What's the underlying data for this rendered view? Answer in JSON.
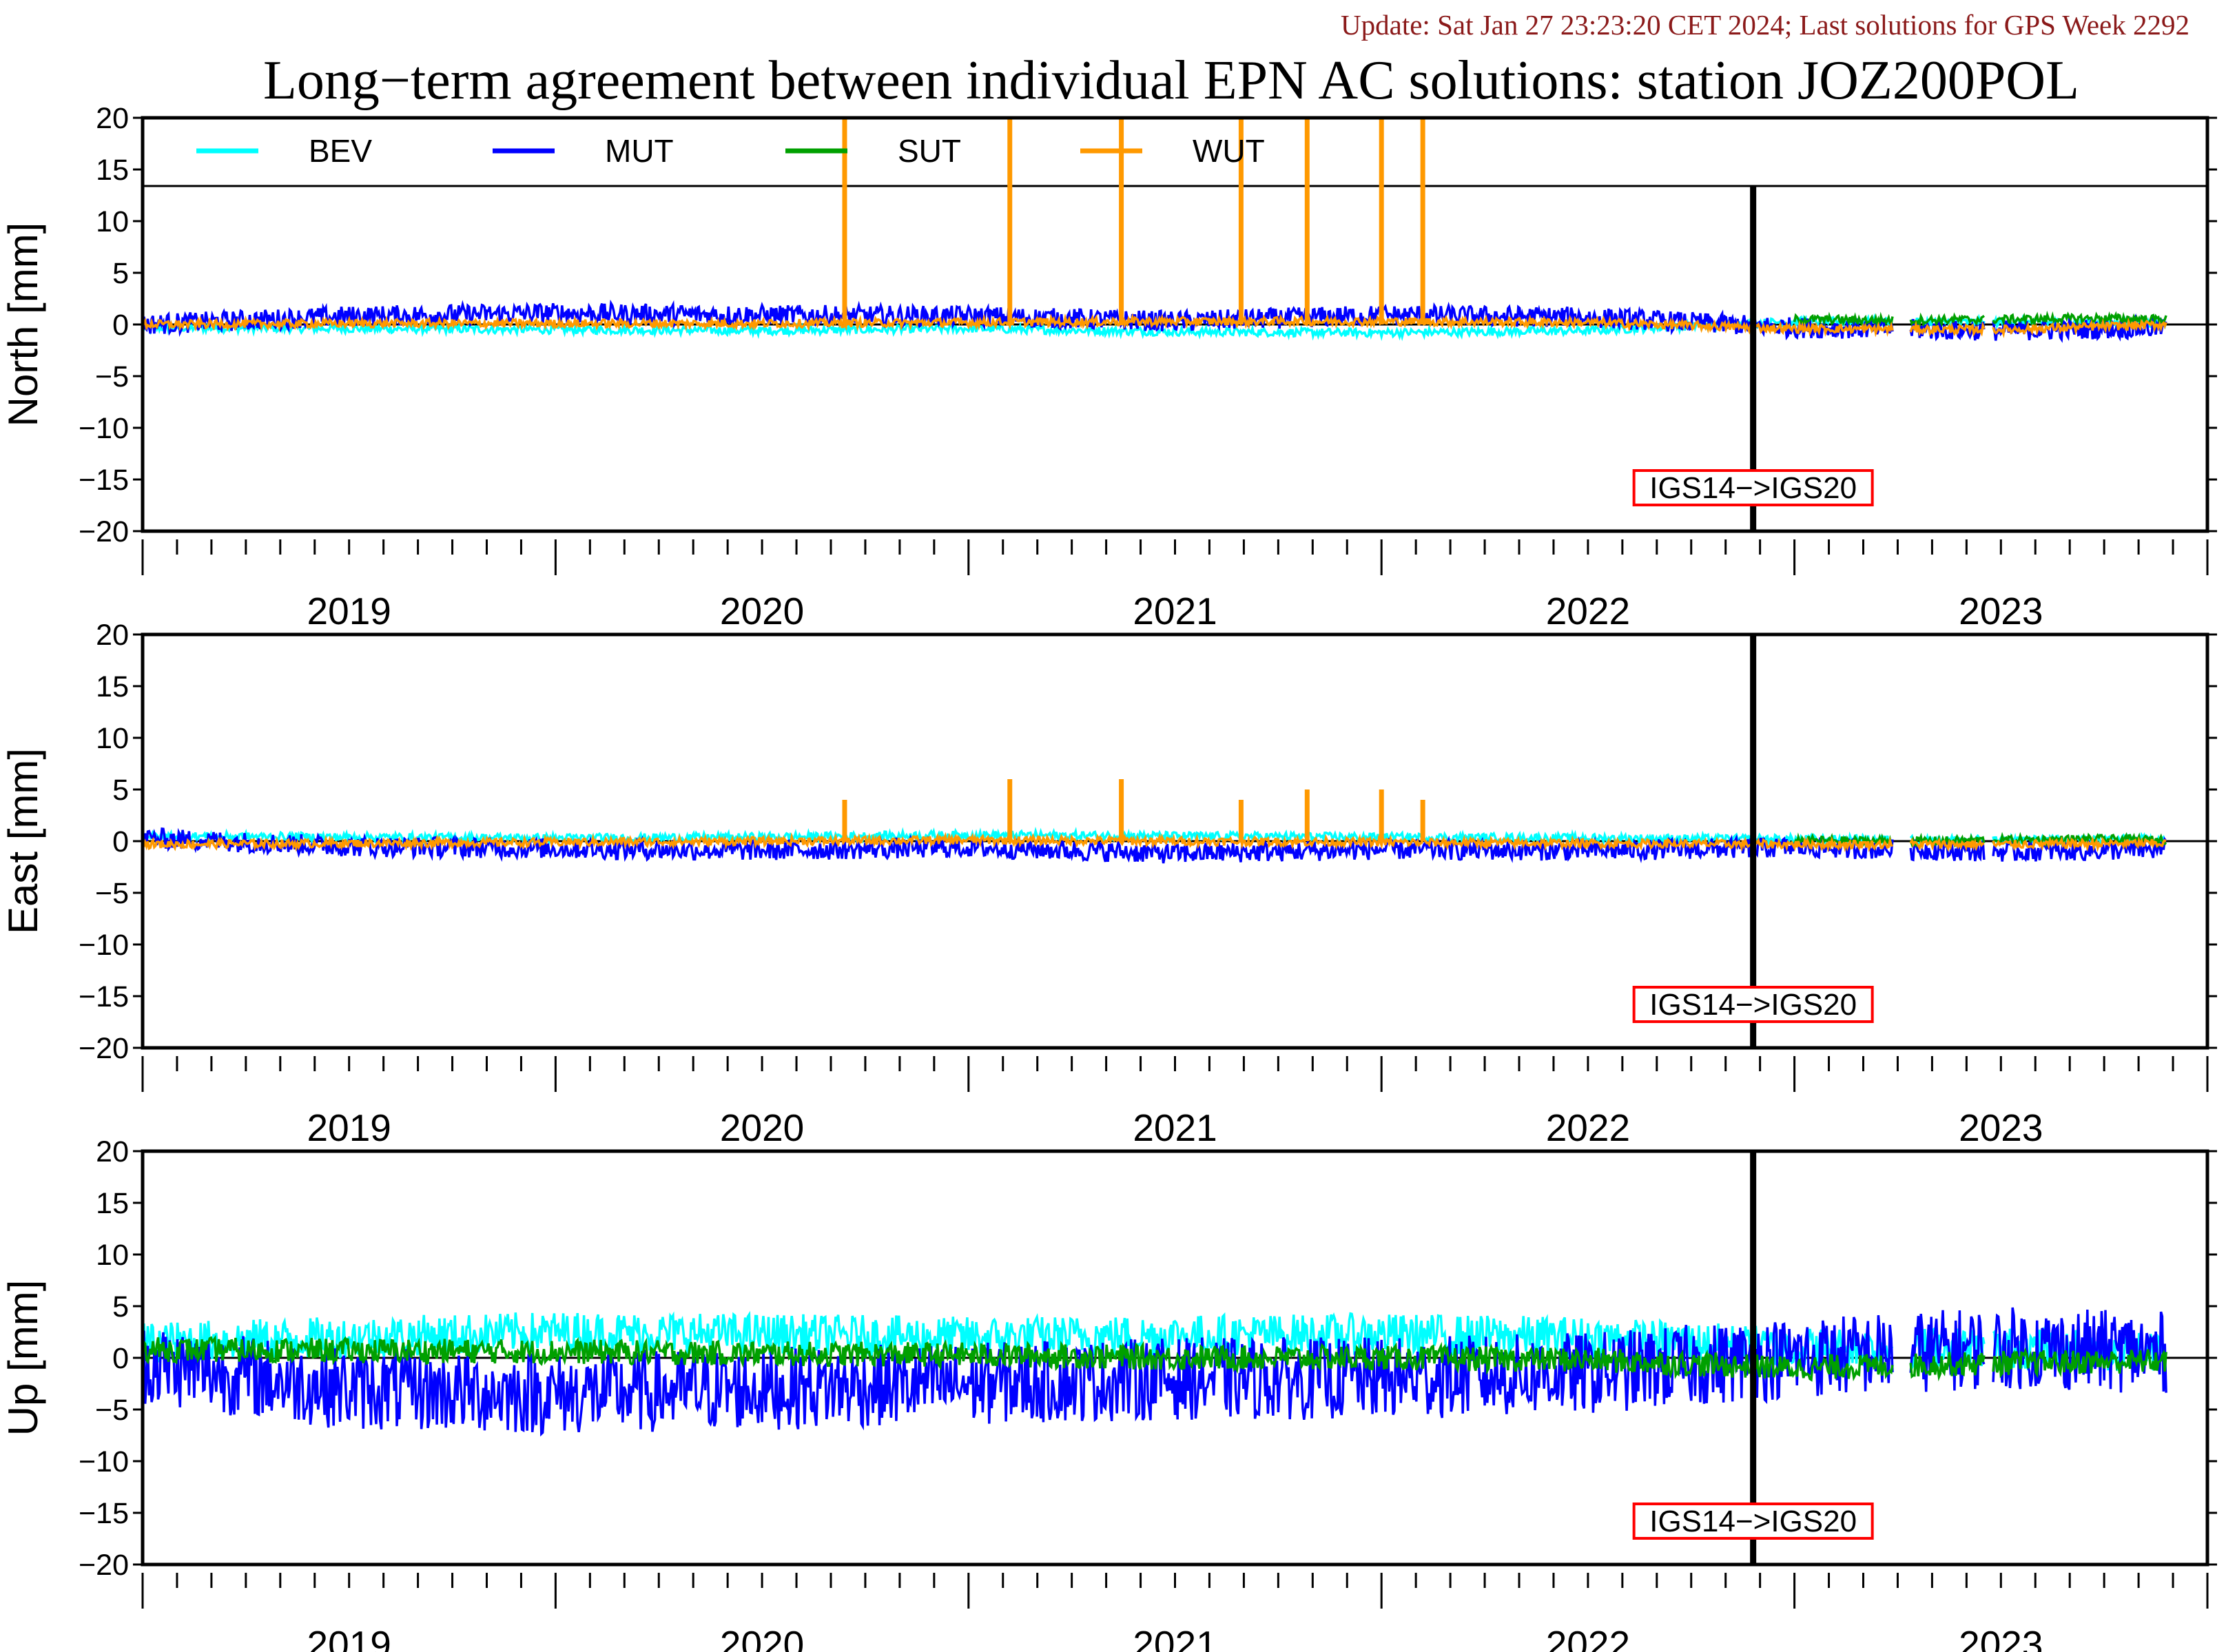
{
  "header": {
    "update_text": "Update: Sat Jan 27 23:23:20 CET 2024; Last solutions for GPS Week 2292",
    "title": "Long−term agreement between individual EPN AC solutions: station JOZ200POL"
  },
  "chart_data": [
    {
      "type": "line",
      "panel": "North",
      "ylabel": "North [mm]",
      "ylim": [
        -20,
        20
      ],
      "yticks": [
        "20",
        "15",
        "10",
        "5",
        "0",
        "−5",
        "−10",
        "−15",
        "−20"
      ],
      "xlim": [
        2018.5,
        2023.5
      ],
      "xticklabels": [
        "2019",
        "2020",
        "2021",
        "2022",
        "2023"
      ],
      "annotation": "IGS14−>IGS20",
      "annotation_x": 2022.4,
      "legend": true,
      "series": [
        {
          "name": "BEV",
          "color": "#00ffff",
          "x": [
            2018.5,
            2019.0,
            2019.5,
            2020.0,
            2020.5,
            2021.0,
            2021.5,
            2022.0,
            2022.5,
            2023.0,
            2023.4
          ],
          "y": [
            -0.3,
            -0.4,
            -0.5,
            -0.6,
            -0.4,
            -0.7,
            -0.8,
            -0.6,
            0.3,
            0.2,
            0.1
          ]
        },
        {
          "name": "MUT",
          "color": "#0000ff",
          "x": [
            2018.5,
            2019.0,
            2019.5,
            2020.0,
            2020.5,
            2021.0,
            2021.5,
            2022.0,
            2022.5,
            2023.0,
            2023.4
          ],
          "y": [
            0.0,
            0.8,
            1.1,
            0.9,
            0.8,
            0.3,
            0.9,
            0.7,
            -0.3,
            -0.6,
            -0.3
          ]
        },
        {
          "name": "SUT",
          "color": "#00a000",
          "x": [
            2022.5,
            2022.75,
            2023.0,
            2023.25,
            2023.4
          ],
          "y": [
            0.5,
            0.4,
            0.5,
            0.6,
            0.5
          ]
        },
        {
          "name": "WUT",
          "color": "#ff9900",
          "x": [
            2018.5,
            2019.0,
            2019.5,
            2020.0,
            2020.5,
            2021.0,
            2021.5,
            2022.0,
            2022.5,
            2023.0,
            2023.4
          ],
          "y": [
            0.0,
            0.1,
            0.1,
            0.1,
            0.2,
            0.3,
            0.3,
            0.2,
            -0.4,
            -0.5,
            0.0
          ]
        }
      ],
      "spikes": {
        "series": "WUT",
        "x": [
          2020.2,
          2020.6,
          2020.87,
          2021.16,
          2021.32,
          2021.5,
          2021.6
        ],
        "y": [
          20,
          20,
          20,
          20,
          20,
          20,
          20
        ]
      }
    },
    {
      "type": "line",
      "panel": "East",
      "ylabel": "East [mm]",
      "ylim": [
        -20,
        20
      ],
      "yticks": [
        "20",
        "15",
        "10",
        "5",
        "0",
        "−5",
        "−10",
        "−15",
        "−20"
      ],
      "xlim": [
        2018.5,
        2023.5
      ],
      "xticklabels": [
        "2019",
        "2020",
        "2021",
        "2022",
        "2023"
      ],
      "annotation": "IGS14−>IGS20",
      "annotation_x": 2022.4,
      "legend": false,
      "series": [
        {
          "name": "BEV",
          "color": "#00ffff",
          "x": [
            2018.5,
            2019.0,
            2019.5,
            2020.0,
            2020.5,
            2021.0,
            2021.5,
            2022.0,
            2022.5,
            2023.0,
            2023.4
          ],
          "y": [
            0.5,
            0.4,
            0.3,
            0.4,
            0.6,
            0.5,
            0.4,
            0.3,
            0.2,
            0.1,
            0.2
          ]
        },
        {
          "name": "MUT",
          "color": "#0000ff",
          "x": [
            2018.5,
            2019.0,
            2019.5,
            2020.0,
            2020.5,
            2021.0,
            2021.5,
            2022.0,
            2022.5,
            2023.0,
            2023.4
          ],
          "y": [
            0.3,
            -0.5,
            -0.7,
            -0.9,
            -0.6,
            -1.2,
            -0.8,
            -0.9,
            -0.6,
            -1.0,
            -0.8
          ]
        },
        {
          "name": "SUT",
          "color": "#00a000",
          "x": [
            2022.5,
            2022.75,
            2023.0,
            2023.25,
            2023.4
          ],
          "y": [
            0.1,
            0.0,
            0.1,
            0.2,
            0.1
          ]
        },
        {
          "name": "WUT",
          "color": "#ff9900",
          "x": [
            2018.5,
            2019.0,
            2019.5,
            2020.0,
            2020.5,
            2021.0,
            2021.5,
            2022.0,
            2022.5,
            2023.0,
            2023.4
          ],
          "y": [
            -0.3,
            -0.2,
            -0.1,
            0.0,
            0.1,
            0.0,
            -0.1,
            -0.2,
            -0.3,
            -0.3,
            -0.2
          ]
        }
      ],
      "spikes": {
        "series": "WUT",
        "x": [
          2020.2,
          2020.6,
          2020.87,
          2021.16,
          2021.32,
          2021.5,
          2021.6
        ],
        "y": [
          4.0,
          6.0,
          6.0,
          4.0,
          5.0,
          5.0,
          4.0
        ]
      }
    },
    {
      "type": "line",
      "panel": "Up",
      "ylabel": "Up [mm]",
      "ylim": [
        -20,
        20
      ],
      "yticks": [
        "20",
        "15",
        "10",
        "5",
        "0",
        "−5",
        "−10",
        "−15",
        "−20"
      ],
      "xlim": [
        2018.5,
        2023.5
      ],
      "xticklabels": [
        "2019",
        "2020",
        "2021",
        "2022",
        "2023"
      ],
      "annotation": "IGS14−>IGS20",
      "annotation_x": 2022.4,
      "legend": false,
      "series": [
        {
          "name": "BEV",
          "color": "#00ffff",
          "x": [
            2018.5,
            2019.0,
            2019.5,
            2020.0,
            2020.5,
            2021.0,
            2021.5,
            2022.0,
            2022.5,
            2023.0,
            2023.4
          ],
          "y": [
            1.5,
            2.0,
            2.5,
            2.3,
            2.0,
            2.2,
            2.3,
            2.0,
            1.0,
            1.0,
            0.5
          ]
        },
        {
          "name": "MUT",
          "color": "#0000ff",
          "x": [
            2018.5,
            2019.0,
            2019.5,
            2020.0,
            2020.5,
            2021.0,
            2021.5,
            2022.0,
            2022.5,
            2023.0,
            2023.4
          ],
          "y": [
            -0.5,
            -3.0,
            -3.5,
            -3.0,
            -2.5,
            -2.0,
            -2.0,
            -1.5,
            0.0,
            1.0,
            0.5
          ]
        },
        {
          "name": "SUT",
          "color": "#00a000",
          "x": [
            2018.5,
            2019.0,
            2019.5,
            2020.0,
            2020.5,
            2021.0,
            2021.5,
            2022.0,
            2022.5,
            2023.0,
            2023.4
          ],
          "y": [
            0.8,
            0.7,
            0.6,
            0.4,
            0.3,
            0.0,
            0.0,
            -0.2,
            -1.0,
            -0.5,
            -0.3
          ]
        }
      ],
      "spikes": null
    }
  ]
}
